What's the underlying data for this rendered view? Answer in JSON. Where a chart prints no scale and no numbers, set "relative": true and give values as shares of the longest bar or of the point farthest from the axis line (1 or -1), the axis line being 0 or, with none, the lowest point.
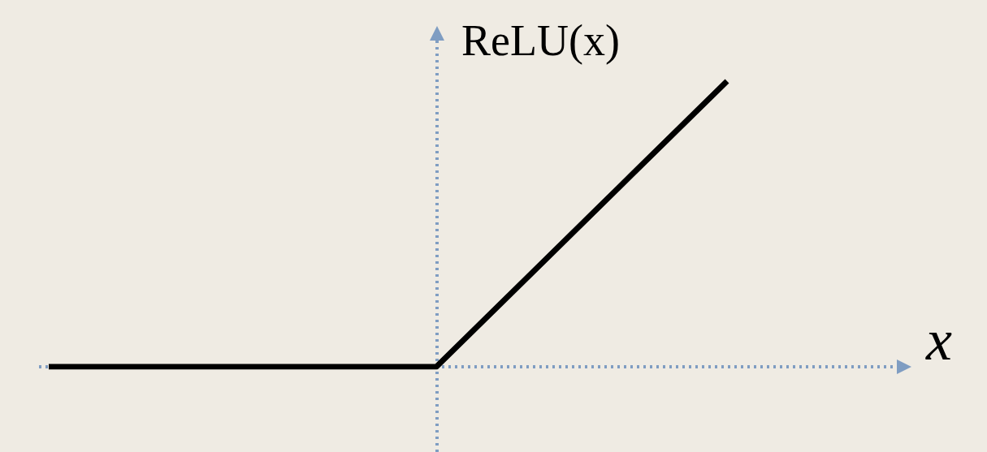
{
  "chart_data": {
    "type": "line",
    "relative": true,
    "xlabel": "x",
    "ylabel": "ReLU(x)",
    "categories": [
      null,
      null,
      null,
      null,
      null,
      null,
      null,
      null
    ],
    "series": [
      {
        "color": "#000000",
        "values": [
          0,
          0,
          0,
          0,
          0,
          0.3333,
          0.6667,
          1
        ]
      }
    ],
    "marker": "none",
    "line_style": "solid"
  }
}
